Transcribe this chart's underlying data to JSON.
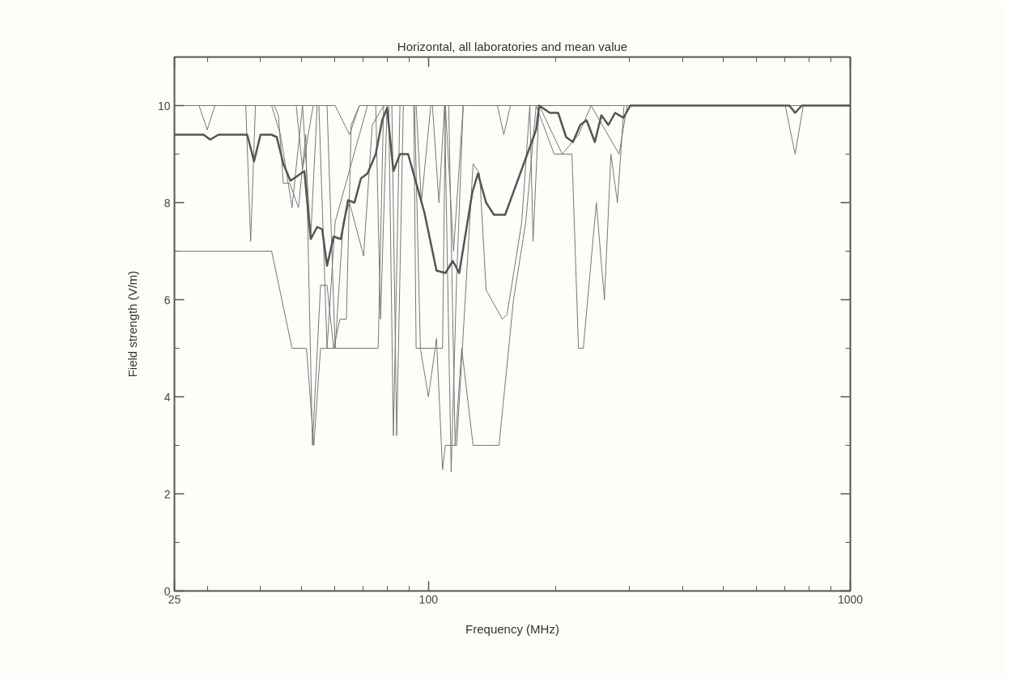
{
  "chart_data": {
    "type": "line",
    "title": "Horizontal, all laboratories and mean value",
    "xlabel": "Frequency (MHz)",
    "ylabel": "Field strength (V/m)",
    "log": "x",
    "xlim": [
      25,
      1000
    ],
    "ylim": [
      0,
      11
    ],
    "xticks": [
      25,
      {
        "value": 30,
        "label": null
      },
      {
        "value": 40,
        "label": null
      },
      {
        "value": 50,
        "label": null
      },
      {
        "value": 60,
        "label": null
      },
      {
        "value": 70,
        "label": null
      },
      {
        "value": 80,
        "label": null
      },
      {
        "value": 90,
        "label": null
      },
      100,
      {
        "value": 200,
        "label": null
      },
      {
        "value": 300,
        "label": null
      },
      {
        "value": 400,
        "label": null
      },
      {
        "value": 500,
        "label": null
      },
      {
        "value": 600,
        "label": null
      },
      {
        "value": 700,
        "label": null
      },
      {
        "value": 800,
        "label": null
      },
      {
        "value": 900,
        "label": null
      },
      1000
    ],
    "yticks": [
      0,
      {
        "value": 1,
        "label": null
      },
      2,
      {
        "value": 3,
        "label": null
      },
      4,
      {
        "value": 5,
        "label": null
      },
      6,
      {
        "value": 7,
        "label": null
      },
      8,
      {
        "value": 9,
        "label": null
      },
      10
    ],
    "grid": false,
    "marker": "none",
    "line_style": "solid",
    "series": [
      {
        "color": "#777777",
        "x": [
          25,
          42.5,
          47.5,
          51.4,
          53.5,
          55.5,
          76.0,
          78.3,
          92.3,
          93.5,
          108,
          109.7,
          1000
        ],
        "values": [
          7.0,
          7.0,
          5.0,
          5.0,
          3.0,
          5.0,
          5.0,
          10,
          10,
          5.0,
          5.0,
          10,
          10
        ]
      },
      {
        "color": "#777777",
        "x": [
          25,
          28.6,
          29.9,
          31.2,
          36.9,
          37.9,
          38.9,
          60.1,
          65.0,
          68.6,
          80.5,
          82.6,
          85.6,
          102.2,
          105.9,
          109.2,
          113.2,
          116.7,
          120.9,
          1000
        ],
        "values": [
          10,
          10,
          9.5,
          10,
          10,
          7.2,
          10,
          10,
          9.4,
          10,
          10,
          3.2,
          10,
          10,
          8.0,
          10,
          2.45,
          6.5,
          10,
          10
        ]
      },
      {
        "color": "#777777",
        "x": [
          25,
          43.1,
          44.1,
          45.3,
          46.9,
          49.2,
          51.2,
          53.1,
          55.5,
          57.5,
          59.6,
          61.7,
          63.9,
          65.6,
          68.6,
          92.7,
          95.7,
          100,
          104.5,
          108,
          109.7,
          116.7,
          127.6,
          132.2,
          137,
          149.6,
          153.6,
          166.4,
          173.9,
          1000
        ],
        "values": [
          10,
          10,
          9.8,
          8.4,
          8.4,
          7.9,
          9.4,
          3.0,
          6.3,
          6.3,
          5.0,
          5.6,
          5.6,
          9.6,
          10,
          10,
          5.0,
          4.0,
          5.2,
          2.5,
          3.0,
          3.0,
          8.8,
          8.6,
          6.2,
          5.6,
          5.7,
          7.6,
          10,
          10
        ]
      },
      {
        "color": "#777777",
        "x": [
          25,
          42.5,
          44.6,
          47.5,
          50.3,
          52.6,
          54.5,
          57.5,
          60.1,
          62.8,
          65.0,
          70.2,
          73.6,
          78.3,
          81.9,
          84.1,
          87.2,
          109.7,
          114.7,
          120.9,
          145.7,
          150.9,
          156.4,
          173.9,
          177,
          183,
          207.6,
          218.9,
          226.8,
          232.9,
          241.3,
          250,
          261.3,
          270.8,
          280.5,
          290.8,
          1000
        ],
        "values": [
          10,
          10,
          9.4,
          7.9,
          10,
          7.3,
          10,
          10,
          5.0,
          7.6,
          8.0,
          6.9,
          9.6,
          10,
          10,
          3.2,
          10,
          10,
          7.0,
          10,
          10,
          9.4,
          10,
          10,
          7.2,
          10,
          9.0,
          9.0,
          5.0,
          5.0,
          6.5,
          8.0,
          6.0,
          9.0,
          8.0,
          10,
          10
        ]
      },
      {
        "color": "#777777",
        "x": [
          25,
          48.6,
          50.3,
          53.3,
          55.0,
          57.5,
          60.1,
          71.7,
          75.0,
          77.0,
          79.8,
          93.5,
          96.2,
          101.3,
          111.7,
          115.7,
          119.9,
          127.6,
          137,
          147,
          159.1,
          170.1,
          180,
          198.6,
          207.6,
          226.8,
          243,
          283,
          295.8,
          701,
          740,
          773.5,
          1000
        ],
        "values": [
          10,
          10,
          8.7,
          10,
          10,
          5.0,
          7.6,
          10,
          10,
          5.6,
          10,
          10,
          8.0,
          10,
          10,
          3.0,
          5.0,
          3.0,
          3.0,
          3.0,
          6.0,
          7.6,
          10,
          9.0,
          9.0,
          9.4,
          10,
          9.0,
          10,
          10,
          9.0,
          10,
          10
        ]
      },
      {
        "color": "#555555",
        "x": [
          25,
          26.1,
          29.3,
          30.4,
          31.8,
          37.2,
          38.6,
          40.0,
          42.5,
          43.7,
          45.3,
          47.1,
          50.8,
          52.6,
          54.5,
          56.0,
          57.5,
          59.6,
          62.0,
          64.5,
          66.8,
          69.2,
          71.7,
          75.0,
          77.7,
          79.8,
          82.6,
          85.6,
          89.5,
          97.8,
          104.5,
          109.7,
          114.2,
          118.3,
          127,
          131,
          137,
          143,
          152,
          180,
          183,
          194,
          203,
          212,
          220,
          229,
          237,
          248,
          257,
          267,
          277,
          290,
          301,
          717,
          740,
          767,
          1000
        ],
        "values": [
          9.4,
          9.4,
          9.4,
          9.3,
          9.4,
          9.4,
          8.85,
          9.4,
          9.4,
          9.35,
          8.8,
          8.45,
          8.65,
          7.25,
          7.5,
          7.45,
          6.7,
          7.3,
          7.25,
          8.05,
          8.0,
          8.5,
          8.6,
          9.0,
          9.7,
          9.95,
          8.65,
          9.0,
          9.0,
          7.8,
          6.6,
          6.55,
          6.8,
          6.55,
          8.2,
          8.6,
          8.0,
          7.75,
          7.75,
          9.5,
          10.0,
          9.85,
          9.85,
          9.35,
          9.25,
          9.6,
          9.7,
          9.25,
          9.8,
          9.6,
          9.85,
          9.75,
          10.0,
          10.0,
          9.85,
          10.0,
          10.0
        ]
      }
    ]
  }
}
